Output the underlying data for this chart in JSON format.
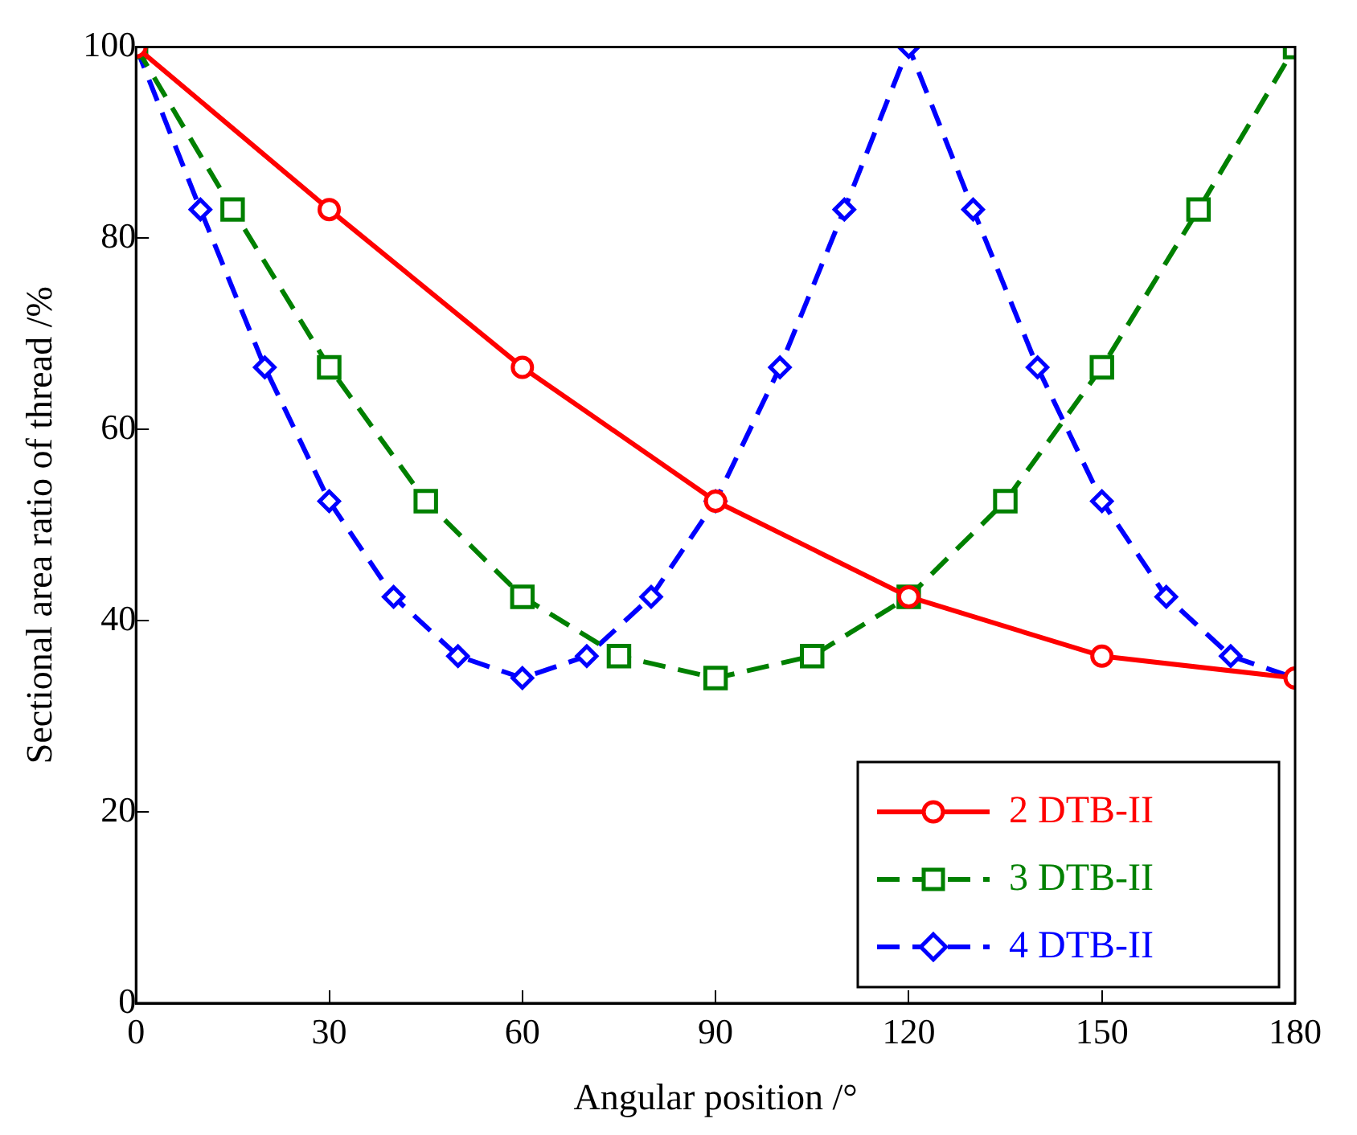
{
  "chart_data": {
    "type": "line",
    "xlabel": "Angular position /°",
    "ylabel": "Sectional area ratio of thread /%",
    "xlim": [
      0,
      180
    ],
    "xticks": [
      0,
      30,
      60,
      90,
      120,
      150,
      180
    ],
    "ylim": [
      0,
      100
    ],
    "yticks": [
      0,
      20,
      40,
      60,
      80,
      100
    ],
    "grid": false,
    "legend": "bottom right",
    "series": [
      {
        "name": "2 DTB-II",
        "color": "#ff0000",
        "marker": "circle",
        "line_style": "solid",
        "x": [
          0,
          30,
          60,
          90,
          120,
          150,
          180
        ],
        "values": [
          100,
          83,
          66.5,
          52.5,
          42.5,
          36.3,
          34
        ]
      },
      {
        "name": "3 DTB-II",
        "color": "#008000",
        "marker": "square",
        "line_style": "dashed",
        "x": [
          0,
          15,
          30,
          45,
          60,
          75,
          90,
          105,
          120,
          135,
          150,
          165,
          180
        ],
        "values": [
          100,
          83,
          66.5,
          52.5,
          42.5,
          36.3,
          34,
          36.3,
          42.5,
          52.5,
          66.5,
          83,
          100
        ]
      },
      {
        "name": "4 DTB-II",
        "color": "#0000ff",
        "marker": "diamond",
        "line_style": "dashed",
        "x": [
          0,
          10,
          20,
          30,
          40,
          50,
          60,
          70,
          80,
          90,
          100,
          110,
          120,
          130,
          140,
          150,
          160,
          170,
          180
        ],
        "values": [
          100,
          83,
          66.5,
          52.5,
          42.5,
          36.3,
          34,
          36.3,
          42.5,
          52.5,
          66.5,
          83,
          100,
          83,
          66.5,
          52.5,
          42.5,
          36.3,
          34
        ]
      }
    ]
  }
}
